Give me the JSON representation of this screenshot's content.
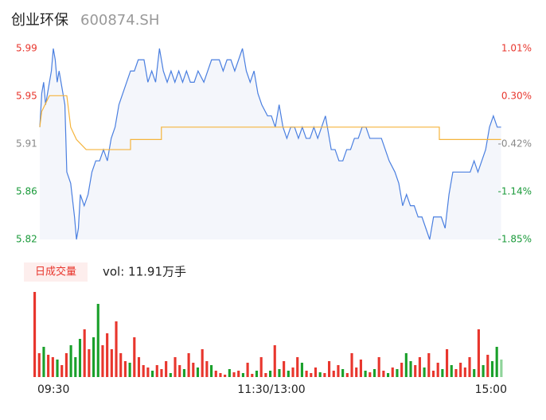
{
  "chart_data": [
    {
      "type": "line",
      "title": "创业环保",
      "subtitle": "600874.SH",
      "xlim": [
        0,
        240
      ],
      "xticks": [
        {
          "value": 0,
          "label": "09:30"
        },
        {
          "value": 120,
          "label": "11:30/13:00"
        },
        {
          "value": 240,
          "label": "15:00"
        }
      ],
      "ylim": [
        5.82,
        5.99
      ],
      "yticks": [
        {
          "value": 5.82,
          "label": "5.82"
        },
        {
          "value": 5.8625,
          "label": "5.86"
        },
        {
          "value": 5.905,
          "label": "5.91"
        },
        {
          "value": 5.9475,
          "label": "5.95"
        },
        {
          "value": 5.99,
          "label": "5.99"
        }
      ],
      "ytick_colors": [
        "#1a9a3a",
        "#1a9a3a",
        "#888888",
        "#e8362d",
        "#e8362d"
      ],
      "y2lim": [
        -1.85,
        1.01
      ],
      "y2ticks": [
        {
          "value": -1.85,
          "label": "-1.85%"
        },
        {
          "value": -1.135,
          "label": "-1.14%"
        },
        {
          "value": -0.42,
          "label": "-0.42%"
        },
        {
          "value": 0.295,
          "label": "0.30%"
        },
        {
          "value": 1.01,
          "label": "1.01%"
        }
      ],
      "y2tick_colors": [
        "#1a9a3a",
        "#1a9a3a",
        "#888888",
        "#e8362d",
        "#e8362d"
      ],
      "area_color": "#f4f6fb",
      "series": [
        {
          "color": "#4a7fe0",
          "x": [
            0,
            1,
            2,
            3,
            5,
            6,
            7,
            8,
            9,
            10,
            12,
            13,
            14,
            16,
            18,
            19,
            20,
            21,
            23,
            25,
            27,
            29,
            31,
            33,
            35,
            37,
            39,
            41,
            43,
            45,
            47,
            49,
            51,
            54,
            56,
            58,
            60,
            62,
            64,
            66,
            68,
            70,
            72,
            74,
            76,
            78,
            80,
            82,
            85,
            87,
            89,
            91,
            93,
            95,
            97,
            99,
            101,
            103,
            105,
            107,
            109,
            111,
            113,
            115,
            118,
            120,
            122,
            124,
            126,
            128,
            130,
            132,
            134,
            136,
            138,
            140,
            142,
            144,
            146,
            148,
            151,
            153,
            155,
            157,
            159,
            161,
            163,
            165,
            167,
            169,
            171,
            173,
            175,
            177,
            179,
            181,
            184,
            186,
            188,
            190,
            192,
            194,
            196,
            198,
            200,
            202,
            204,
            206,
            208,
            210,
            212,
            214,
            217,
            219,
            221,
            223,
            225,
            227,
            229,
            231,
            233,
            235,
            237,
            239
          ],
          "values": [
            5.92,
            5.95,
            5.96,
            5.94,
            5.96,
            5.97,
            5.99,
            5.98,
            5.96,
            5.97,
            5.95,
            5.94,
            5.88,
            5.87,
            5.84,
            5.82,
            5.83,
            5.86,
            5.85,
            5.86,
            5.88,
            5.89,
            5.89,
            5.9,
            5.89,
            5.91,
            5.92,
            5.94,
            5.95,
            5.96,
            5.97,
            5.97,
            5.98,
            5.98,
            5.96,
            5.97,
            5.96,
            5.99,
            5.97,
            5.96,
            5.97,
            5.96,
            5.97,
            5.96,
            5.97,
            5.96,
            5.96,
            5.97,
            5.96,
            5.97,
            5.98,
            5.98,
            5.98,
            5.97,
            5.98,
            5.98,
            5.97,
            5.98,
            5.99,
            5.97,
            5.96,
            5.97,
            5.95,
            5.94,
            5.93,
            5.93,
            5.92,
            5.94,
            5.92,
            5.91,
            5.92,
            5.92,
            5.91,
            5.92,
            5.91,
            5.91,
            5.92,
            5.91,
            5.92,
            5.93,
            5.9,
            5.9,
            5.89,
            5.89,
            5.9,
            5.9,
            5.91,
            5.91,
            5.92,
            5.92,
            5.91,
            5.91,
            5.91,
            5.91,
            5.9,
            5.89,
            5.88,
            5.87,
            5.85,
            5.86,
            5.85,
            5.85,
            5.84,
            5.84,
            5.83,
            5.82,
            5.84,
            5.84,
            5.84,
            5.83,
            5.86,
            5.88,
            5.88,
            5.88,
            5.88,
            5.88,
            5.89,
            5.88,
            5.89,
            5.9,
            5.92,
            5.93,
            5.92,
            5.92
          ]
        },
        {
          "color": "#f5b43c",
          "x": [
            0,
            1,
            5,
            14,
            16,
            19,
            24,
            47,
            47,
            63,
            63,
            207,
            207,
            239
          ],
          "values": [
            5.92,
            5.934,
            5.948,
            5.948,
            5.92,
            5.909,
            5.9,
            5.9,
            5.909,
            5.909,
            5.92,
            5.92,
            5.909,
            5.909
          ]
        }
      ]
    },
    {
      "type": "bar",
      "badge": "日成交量",
      "label": "vol: 11.91万手",
      "ylim": [
        0,
        110
      ],
      "values": [
        107,
        30,
        38,
        28,
        25,
        22,
        15,
        30,
        40,
        25,
        48,
        60,
        35,
        50,
        92,
        40,
        55,
        35,
        70,
        30,
        20,
        18,
        50,
        25,
        15,
        12,
        8,
        15,
        10,
        20,
        5,
        25,
        15,
        10,
        30,
        18,
        12,
        35,
        20,
        15,
        8,
        5,
        3,
        10,
        6,
        8,
        5,
        18,
        4,
        8,
        25,
        5,
        8,
        40,
        10,
        20,
        8,
        12,
        25,
        18,
        8,
        5,
        12,
        6,
        5,
        20,
        8,
        15,
        10,
        5,
        30,
        12,
        22,
        8,
        6,
        10,
        25,
        8,
        5,
        12,
        10,
        18,
        30,
        20,
        15,
        25,
        12,
        30,
        8,
        18,
        10,
        35,
        15,
        10,
        18,
        12,
        25,
        10,
        60,
        15,
        28,
        20,
        38,
        22
      ],
      "colors": [
        "#e8362d",
        "#e8362d",
        "#1aa02b",
        "#e8362d",
        "#e8362d",
        "#1aa02b",
        "#e8362d",
        "#e8362d",
        "#1aa02b",
        "#1aa02b",
        "#1aa02b",
        "#e8362d",
        "#e8362d",
        "#1aa02b",
        "#1aa02b",
        "#e8362d",
        "#e8362d",
        "#e8362d",
        "#e8362d",
        "#e8362d",
        "#e8362d",
        "#1aa02b",
        "#e8362d",
        "#e8362d",
        "#e8362d",
        "#e8362d",
        "#1aa02b",
        "#e8362d",
        "#e8362d",
        "#e8362d",
        "#1aa02b",
        "#e8362d",
        "#e8362d",
        "#1aa02b",
        "#e8362d",
        "#e8362d",
        "#1aa02b",
        "#e8362d",
        "#e8362d",
        "#1aa02b",
        "#e8362d",
        "#e8362d",
        "#e8362d",
        "#1aa02b",
        "#e8362d",
        "#e8362d",
        "#1aa02b",
        "#e8362d",
        "#e8362d",
        "#1aa02b",
        "#e8362d",
        "#e8362d",
        "#1aa02b",
        "#e8362d",
        "#1aa02b",
        "#e8362d",
        "#1aa02b",
        "#e8362d",
        "#e8362d",
        "#1aa02b",
        "#e8362d",
        "#e8362d",
        "#e8362d",
        "#1aa02b",
        "#e8362d",
        "#e8362d",
        "#e8362d",
        "#e8362d",
        "#1aa02b",
        "#e8362d",
        "#e8362d",
        "#e8362d",
        "#e8362d",
        "#1aa02b",
        "#e8362d",
        "#1aa02b",
        "#e8362d",
        "#e8362d",
        "#1aa02b",
        "#e8362d",
        "#1aa02b",
        "#e8362d",
        "#1aa02b",
        "#1aa02b",
        "#e8362d",
        "#e8362d",
        "#1aa02b",
        "#e8362d",
        "#e8362d",
        "#e8362d",
        "#1aa02b",
        "#e8362d",
        "#1aa02b",
        "#e8362d",
        "#e8362d",
        "#e8362d",
        "#e8362d",
        "#1aa02b",
        "#e8362d",
        "#1aa02b",
        "#e8362d",
        "#1aa02b",
        "#1aa02b",
        "#8fd49a"
      ]
    }
  ]
}
